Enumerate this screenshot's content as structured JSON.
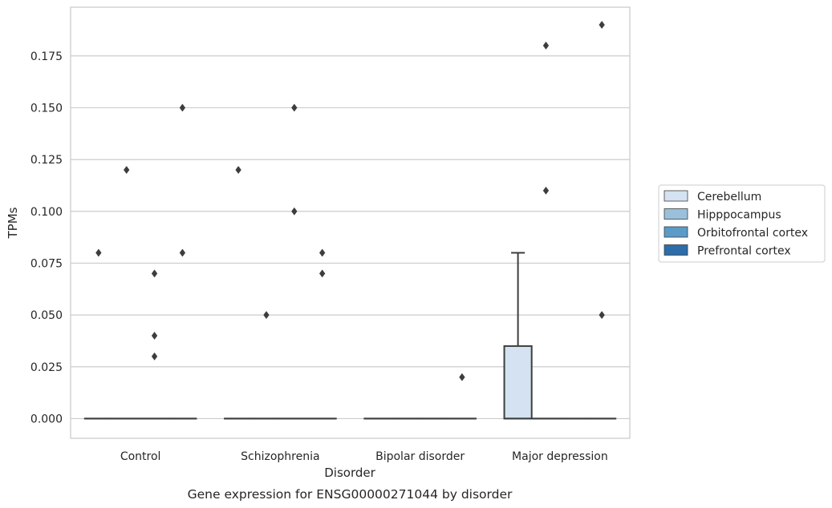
{
  "chart_data": {
    "type": "box",
    "title": "",
    "caption": "Gene expression for ENSG00000271044 by disorder",
    "xlabel": "Disorder",
    "ylabel": "TPMs",
    "ylim": [
      -0.0095,
      0.1985
    ],
    "yticks": [
      "0.000",
      "0.025",
      "0.050",
      "0.075",
      "0.100",
      "0.125",
      "0.150",
      "0.175"
    ],
    "grid": "horizontal",
    "legend_position": "right",
    "categories": [
      "Control",
      "Schizophrenia",
      "Bipolar disorder",
      "Major depression"
    ],
    "hue_order": [
      "Cerebellum",
      "Hipppocampus",
      "Orbitofrontal cortex",
      "Prefrontal cortex"
    ],
    "series": [
      {
        "name": "Cerebellum",
        "color": "#d4e2f1",
        "boxes": [
          {
            "category": "Control",
            "q1": 0,
            "median": 0,
            "q3": 0,
            "whisker_low": 0,
            "whisker_high": 0,
            "fliers": [
              0.08
            ]
          },
          {
            "category": "Schizophrenia",
            "q1": 0,
            "median": 0,
            "q3": 0,
            "whisker_low": 0,
            "whisker_high": 0,
            "fliers": [
              0.12
            ]
          },
          {
            "category": "Bipolar disorder",
            "q1": 0,
            "median": 0,
            "q3": 0,
            "whisker_low": 0,
            "whisker_high": 0,
            "fliers": []
          },
          {
            "category": "Major depression",
            "q1": 0,
            "median": 0,
            "q3": 0.035,
            "whisker_low": 0,
            "whisker_high": 0.08,
            "fliers": []
          }
        ]
      },
      {
        "name": "Hipppocampus",
        "color": "#9ac0db",
        "boxes": [
          {
            "category": "Control",
            "q1": 0,
            "median": 0,
            "q3": 0,
            "whisker_low": 0,
            "whisker_high": 0,
            "fliers": [
              0.12
            ]
          },
          {
            "category": "Schizophrenia",
            "q1": 0,
            "median": 0,
            "q3": 0,
            "whisker_low": 0,
            "whisker_high": 0,
            "fliers": [
              0.05
            ]
          },
          {
            "category": "Bipolar disorder",
            "q1": 0,
            "median": 0,
            "q3": 0,
            "whisker_low": 0,
            "whisker_high": 0,
            "fliers": []
          },
          {
            "category": "Major depression",
            "q1": 0,
            "median": 0,
            "q3": 0,
            "whisker_low": 0,
            "whisker_high": 0,
            "fliers": [
              0.18,
              0.11
            ]
          }
        ]
      },
      {
        "name": "Orbitofrontal cortex",
        "color": "#5c9bc7",
        "boxes": [
          {
            "category": "Control",
            "q1": 0,
            "median": 0,
            "q3": 0,
            "whisker_low": 0,
            "whisker_high": 0,
            "fliers": [
              0.07,
              0.04,
              0.03
            ]
          },
          {
            "category": "Schizophrenia",
            "q1": 0,
            "median": 0,
            "q3": 0,
            "whisker_low": 0,
            "whisker_high": 0,
            "fliers": [
              0.15,
              0.1
            ]
          },
          {
            "category": "Bipolar disorder",
            "q1": 0,
            "median": 0,
            "q3": 0,
            "whisker_low": 0,
            "whisker_high": 0,
            "fliers": []
          },
          {
            "category": "Major depression",
            "q1": 0,
            "median": 0,
            "q3": 0,
            "whisker_low": 0,
            "whisker_high": 0,
            "fliers": []
          }
        ]
      },
      {
        "name": "Prefrontal cortex",
        "color": "#2d6da9",
        "boxes": [
          {
            "category": "Control",
            "q1": 0,
            "median": 0,
            "q3": 0,
            "whisker_low": 0,
            "whisker_high": 0,
            "fliers": [
              0.15,
              0.08
            ]
          },
          {
            "category": "Schizophrenia",
            "q1": 0,
            "median": 0,
            "q3": 0,
            "whisker_low": 0,
            "whisker_high": 0,
            "fliers": [
              0.08,
              0.07
            ]
          },
          {
            "category": "Bipolar disorder",
            "q1": 0,
            "median": 0,
            "q3": 0,
            "whisker_low": 0,
            "whisker_high": 0,
            "fliers": [
              0.02
            ]
          },
          {
            "category": "Major depression",
            "q1": 0,
            "median": 0,
            "q3": 0,
            "whisker_low": 0,
            "whisker_high": 0,
            "fliers": [
              0.19,
              0.05
            ]
          }
        ]
      }
    ],
    "colors": {
      "box_edge": "#3d3d3d",
      "grid": "#cccccc",
      "frame": "#cccccc",
      "legend_frame": "#cccccc"
    }
  }
}
